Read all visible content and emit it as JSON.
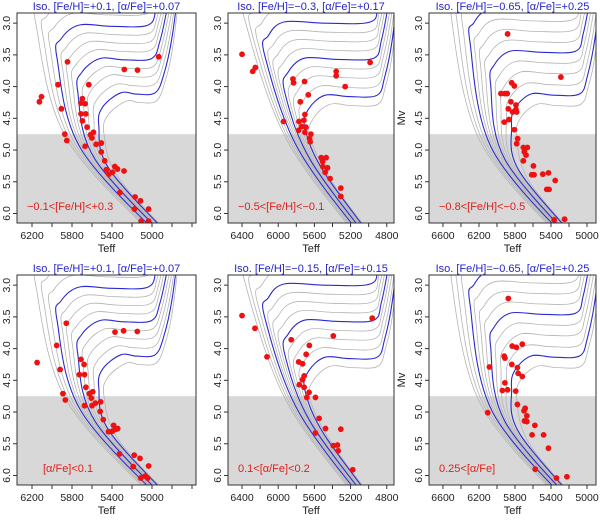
{
  "chart_data": [
    {
      "type": "scatter",
      "title": "Iso. [Fe/H]=+0.1,  [α/Fe]=+0.07",
      "annotation": "−0.1<[Fe/H]<+0.3",
      "xlabel": "Teff",
      "ylabel": "",
      "xlim": [
        6350,
        4560
      ],
      "ylim": [
        2.84,
        6.15
      ],
      "xticks": [
        6200,
        5800,
        5400,
        5000
      ],
      "yticks": [
        "3.0",
        "3.5",
        "4.0",
        "4.5",
        "5.0",
        "5.5",
        "6.0"
      ],
      "shaded_mv_above": 4.75,
      "points": [
        [
          4933,
          3.53
        ],
        [
          5845,
          3.61
        ],
        [
          5277,
          3.73
        ],
        [
          5145,
          3.74
        ],
        [
          5940,
          3.97
        ],
        [
          5632,
          3.97
        ],
        [
          6105,
          4.16
        ],
        [
          6126,
          4.24
        ],
        [
          5906,
          4.35
        ],
        [
          5696,
          4.19
        ],
        [
          5710,
          4.26
        ],
        [
          5669,
          4.27
        ],
        [
          5710,
          4.43
        ],
        [
          5662,
          4.43
        ],
        [
          5696,
          4.54
        ],
        [
          5649,
          4.64
        ],
        [
          5615,
          4.76
        ],
        [
          5585,
          4.72
        ],
        [
          5601,
          4.81
        ],
        [
          5872,
          4.75
        ],
        [
          5852,
          4.85
        ],
        [
          5669,
          4.94
        ],
        [
          5558,
          4.91
        ],
        [
          5507,
          4.89
        ],
        [
          5507,
          5.03
        ],
        [
          5473,
          5.17
        ],
        [
          5456,
          5.31
        ],
        [
          5372,
          5.26
        ],
        [
          5345,
          5.3
        ],
        [
          5395,
          5.35
        ],
        [
          5432,
          5.38
        ],
        [
          5280,
          5.33
        ],
        [
          5321,
          5.67
        ],
        [
          5169,
          5.74
        ],
        [
          5115,
          5.8
        ],
        [
          5176,
          5.93
        ],
        [
          5034,
          5.93
        ],
        [
          5108,
          6.12
        ],
        [
          5034,
          6.12
        ]
      ]
    },
    {
      "type": "scatter",
      "title": "Iso. [Fe/H]=−0.3,  [α/Fe]=+0.17",
      "annotation": "−0.5<[Fe/H]<−0.1",
      "xlabel": "Teff",
      "ylabel": "",
      "xlim": [
        6555,
        4720
      ],
      "ylim": [
        2.84,
        6.15
      ],
      "xticks": [
        6400,
        6000,
        5600,
        5200,
        4800
      ],
      "yticks": [
        "3.0",
        "3.5",
        "4.0",
        "4.5",
        "5.0",
        "5.5",
        "6.0"
      ],
      "shaded_mv_above": 4.75,
      "points": [
        [
          6400,
          3.49
        ],
        [
          6282,
          3.76
        ],
        [
          6253,
          3.7
        ],
        [
          4984,
          3.62
        ],
        [
          5837,
          3.88
        ],
        [
          5830,
          3.94
        ],
        [
          5709,
          3.92
        ],
        [
          5359,
          3.76
        ],
        [
          5359,
          3.83
        ],
        [
          5260,
          4.0
        ],
        [
          5668,
          4.13
        ],
        [
          5756,
          4.24
        ],
        [
          5940,
          4.55
        ],
        [
          5705,
          4.44
        ],
        [
          5716,
          4.53
        ],
        [
          5771,
          4.55
        ],
        [
          5742,
          4.63
        ],
        [
          5694,
          4.64
        ],
        [
          5775,
          4.69
        ],
        [
          5705,
          4.72
        ],
        [
          5639,
          4.75
        ],
        [
          5654,
          4.82
        ],
        [
          5647,
          4.87
        ],
        [
          5525,
          5.12
        ],
        [
          5470,
          5.12
        ],
        [
          5510,
          5.18
        ],
        [
          5507,
          5.26
        ],
        [
          5455,
          5.28
        ],
        [
          5481,
          5.35
        ],
        [
          5426,
          5.45
        ],
        [
          5308,
          5.6
        ],
        [
          5308,
          5.73
        ]
      ]
    },
    {
      "type": "scatter",
      "title": "Iso. [Fe/H]=−0.65,  [α/Fe]=+0.25",
      "annotation": "−0.8<[Fe/H]<−0.5",
      "xlabel": "Teff",
      "ylabel": "Mv",
      "xlim": [
        6755,
        4900
      ],
      "ylim": [
        2.84,
        6.15
      ],
      "xticks": [
        6600,
        6200,
        5800,
        5400,
        5000
      ],
      "yticks": [
        "3.0",
        "3.5",
        "4.0",
        "4.5",
        "5.0",
        "5.5",
        "6.0"
      ],
      "shaded_mv_above": 4.75,
      "points": [
        [
          5882,
          3.17
        ],
        [
          5290,
          3.85
        ],
        [
          5837,
          3.94
        ],
        [
          5807,
          3.99
        ],
        [
          5956,
          4.11
        ],
        [
          5912,
          4.11
        ],
        [
          5886,
          4.11
        ],
        [
          5845,
          4.24
        ],
        [
          5874,
          4.35
        ],
        [
          5789,
          4.29
        ],
        [
          5789,
          4.36
        ],
        [
          5826,
          4.4
        ],
        [
          5781,
          4.4
        ],
        [
          5867,
          4.52
        ],
        [
          5919,
          4.56
        ],
        [
          5807,
          4.68
        ],
        [
          5770,
          4.82
        ],
        [
          5781,
          4.9
        ],
        [
          5707,
          4.96
        ],
        [
          5662,
          4.96
        ],
        [
          5696,
          5.03
        ],
        [
          5677,
          5.08
        ],
        [
          5707,
          5.17
        ],
        [
          5595,
          5.25
        ],
        [
          5614,
          5.39
        ],
        [
          5588,
          5.39
        ],
        [
          5491,
          5.38
        ],
        [
          5428,
          5.36
        ],
        [
          5353,
          5.48
        ],
        [
          5447,
          5.62
        ],
        [
          5421,
          5.62
        ],
        [
          5365,
          6.1
        ],
        [
          5249,
          6.09
        ]
      ]
    },
    {
      "type": "scatter",
      "title": "Iso. [Fe/H]=+0.1,  [α/Fe]=+0.07",
      "annotation": "[α/Fe]<0.1",
      "xlabel": "Teff",
      "ylabel": "",
      "xlim": [
        6350,
        4560
      ],
      "ylim": [
        2.84,
        6.15
      ],
      "xticks": [
        6200,
        5800,
        5400,
        5000
      ],
      "yticks": [
        "3.0",
        "3.5",
        "4.0",
        "4.5",
        "5.0",
        "5.5",
        "6.0"
      ],
      "shaded_mv_above": 4.75,
      "points": [
        [
          5857,
          3.6
        ],
        [
          5370,
          3.74
        ],
        [
          5284,
          3.72
        ],
        [
          5147,
          3.73
        ],
        [
          5953,
          3.95
        ],
        [
          6149,
          4.22
        ],
        [
          5919,
          4.33
        ],
        [
          5710,
          4.17
        ],
        [
          5679,
          4.25
        ],
        [
          5727,
          4.41
        ],
        [
          5675,
          4.41
        ],
        [
          5661,
          4.61
        ],
        [
          5891,
          4.71
        ],
        [
          5867,
          4.81
        ],
        [
          5627,
          4.71
        ],
        [
          5593,
          4.68
        ],
        [
          5607,
          4.78
        ],
        [
          5675,
          4.9
        ],
        [
          5600,
          4.9
        ],
        [
          5566,
          4.86
        ],
        [
          5514,
          4.84
        ],
        [
          5518,
          4.99
        ],
        [
          5487,
          5.12
        ],
        [
          5384,
          5.21
        ],
        [
          5343,
          5.26
        ],
        [
          5360,
          5.27
        ],
        [
          5394,
          5.3
        ],
        [
          5435,
          5.31
        ],
        [
          5325,
          5.66
        ],
        [
          5178,
          5.68
        ],
        [
          5120,
          5.73
        ],
        [
          5188,
          5.86
        ],
        [
          5034,
          5.85
        ],
        [
          5113,
          6.04
        ],
        [
          5068,
          6.01
        ],
        [
          5044,
          6.04
        ]
      ]
    },
    {
      "type": "scatter",
      "title": "Iso. [Fe/H]=−0.15,  [α/Fe]=+0.15",
      "annotation": "0.1<[α/Fe]<0.2",
      "xlabel": "Teff",
      "ylabel": "",
      "xlim": [
        6555,
        4720
      ],
      "ylim": [
        2.84,
        6.15
      ],
      "xticks": [
        6400,
        6000,
        5600,
        5200,
        4800
      ],
      "yticks": [
        "3.0",
        "3.5",
        "4.0",
        "4.5",
        "5.0",
        "5.5",
        "6.0"
      ],
      "shaded_mv_above": 4.75,
      "points": [
        [
          6400,
          3.48
        ],
        [
          6257,
          3.68
        ],
        [
          6124,
          4.13
        ],
        [
          5856,
          3.86
        ],
        [
          5391,
          3.8
        ],
        [
          4961,
          3.52
        ],
        [
          5656,
          3.95
        ],
        [
          5691,
          4.09
        ],
        [
          5774,
          4.21
        ],
        [
          5731,
          4.24
        ],
        [
          5713,
          4.43
        ],
        [
          5731,
          4.49
        ],
        [
          5713,
          4.61
        ],
        [
          5767,
          4.57
        ],
        [
          5659,
          4.69
        ],
        [
          5684,
          4.77
        ],
        [
          5588,
          4.77
        ],
        [
          5548,
          5.1
        ],
        [
          5477,
          5.26
        ],
        [
          5308,
          5.27
        ],
        [
          5588,
          5.33
        ],
        [
          5391,
          5.53
        ],
        [
          5345,
          5.52
        ],
        [
          5337,
          5.61
        ],
        [
          5176,
          5.91
        ]
      ]
    },
    {
      "type": "scatter",
      "title": "Iso. [Fe/H]=−0.65,  [α/Fe]=+0.25",
      "annotation": "0.25<[α/Fe]",
      "xlabel": "Teff",
      "ylabel": "Mv",
      "xlim": [
        6755,
        4900
      ],
      "ylim": [
        2.84,
        6.15
      ],
      "xticks": [
        6600,
        6200,
        5800,
        5400,
        5000
      ],
      "yticks": [
        "3.0",
        "3.5",
        "4.0",
        "4.5",
        "5.0",
        "5.5",
        "6.0"
      ],
      "shaded_mv_above": 4.75,
      "points": [
        [
          5874,
          3.21
        ],
        [
          5831,
          3.96
        ],
        [
          5785,
          3.98
        ],
        [
          5719,
          3.93
        ],
        [
          5920,
          4.12
        ],
        [
          5912,
          4.15
        ],
        [
          6084,
          4.29
        ],
        [
          5835,
          4.25
        ],
        [
          5773,
          4.3
        ],
        [
          5765,
          4.39
        ],
        [
          5719,
          4.44
        ],
        [
          5912,
          4.54
        ],
        [
          5940,
          4.66
        ],
        [
          5882,
          4.65
        ],
        [
          5792,
          4.67
        ],
        [
          5773,
          4.88
        ],
        [
          5687,
          4.94
        ],
        [
          5699,
          4.98
        ],
        [
          5668,
          5.06
        ],
        [
          5695,
          5.14
        ],
        [
          5668,
          5.15
        ],
        [
          6103,
          5.01
        ],
        [
          5579,
          5.21
        ],
        [
          5610,
          5.36
        ],
        [
          5482,
          5.36
        ],
        [
          5428,
          5.57
        ],
        [
          5575,
          5.9
        ],
        [
          5339,
          6.04
        ],
        [
          5223,
          6.02
        ]
      ]
    }
  ],
  "colors": {
    "title": "#2424c8",
    "annotation": "#e0201c",
    "points": "#ee1111",
    "isochrone_highlight": "#2a2ad0",
    "isochrone": "#b4b4b4",
    "shading": "#d8d8d8"
  }
}
